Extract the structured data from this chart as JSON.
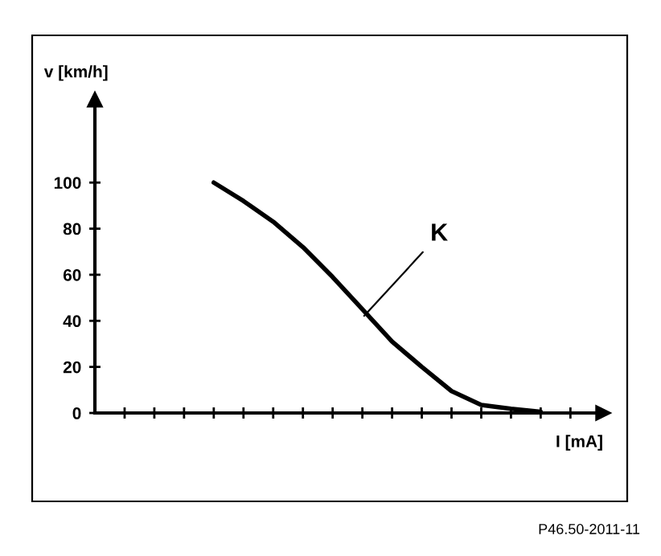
{
  "chart_data": {
    "type": "line",
    "xlabel": "I [mA]",
    "ylabel": "v [km/h]",
    "categories": [
      null,
      null,
      null,
      null,
      null,
      null,
      null,
      null,
      null,
      null,
      null,
      null,
      null,
      null,
      null,
      null,
      null,
      null
    ],
    "values": [
      null,
      null,
      null,
      null,
      100,
      92,
      83,
      72,
      59,
      45,
      31,
      20,
      9.5,
      3.5,
      1.8,
      0.5,
      null,
      null
    ],
    "color": "#000000",
    "ylim": [
      0,
      136
    ],
    "yticks": [
      0,
      20,
      40,
      60,
      80,
      100
    ],
    "grid": false,
    "legend": false,
    "marker": "none",
    "line_style": "solid",
    "annotations": [
      "K",
      "P46.50-2011-11"
    ]
  }
}
